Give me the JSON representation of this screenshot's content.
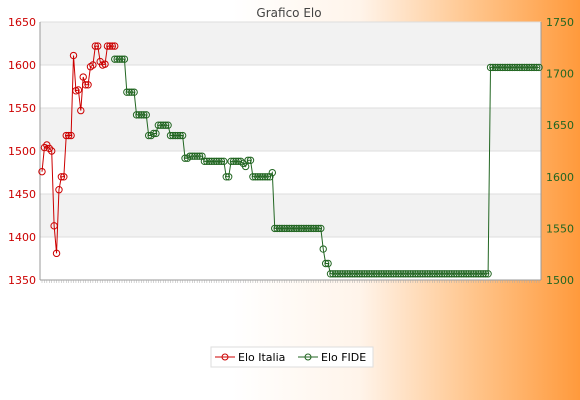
{
  "chart_data": {
    "type": "line",
    "title": "Grafico Elo",
    "xlabel": "",
    "ylabel": "",
    "y_left": {
      "ylim": [
        1350,
        1650
      ],
      "ticks": [
        1350,
        1400,
        1450,
        1500,
        1550,
        1600,
        1650
      ],
      "color": "#cc0000"
    },
    "y_right": {
      "ylim": [
        1500,
        1750
      ],
      "ticks": [
        1500,
        1550,
        1600,
        1650,
        1700,
        1750
      ],
      "color": "#226622"
    },
    "grid": true,
    "legend": {
      "position": "bottom-center"
    },
    "series": [
      {
        "name": "Elo Italia",
        "axis": "left",
        "color": "#cc0000",
        "values": [
          1476,
          1504,
          1507,
          1503,
          1500,
          1413,
          1381,
          1455,
          1470,
          1470,
          1518,
          1518,
          1518,
          1611,
          1570,
          1571,
          1547,
          1586,
          1577,
          1577,
          1598,
          1600,
          1622,
          1622,
          1604,
          1600,
          1601,
          1622,
          1622,
          1622,
          1622
        ]
      },
      {
        "name": "Elo FIDE",
        "axis": "right",
        "color": "#226622",
        "start_index": 30,
        "values": [
          1714,
          1714,
          1714,
          1714,
          1714,
          1682,
          1682,
          1682,
          1682,
          1660,
          1660,
          1660,
          1660,
          1660,
          1640,
          1640,
          1642,
          1642,
          1650,
          1650,
          1650,
          1650,
          1650,
          1640,
          1640,
          1640,
          1640,
          1640,
          1640,
          1618,
          1618,
          1620,
          1620,
          1620,
          1620,
          1620,
          1620,
          1615,
          1615,
          1615,
          1615,
          1615,
          1615,
          1615,
          1615,
          1615,
          1600,
          1600,
          1615,
          1615,
          1615,
          1615,
          1615,
          1613,
          1610,
          1616,
          1616,
          1600,
          1600,
          1600,
          1600,
          1600,
          1600,
          1600,
          1600,
          1604,
          1550,
          1550,
          1550,
          1550,
          1550,
          1550,
          1550,
          1550,
          1550,
          1550,
          1550,
          1550,
          1550,
          1550,
          1550,
          1550,
          1550,
          1550,
          1550,
          1550,
          1530,
          1516,
          1516,
          1506,
          1506,
          1506,
          1506,
          1506,
          1506,
          1506,
          1506,
          1506,
          1506,
          1506,
          1506,
          1506,
          1506,
          1506,
          1506,
          1506,
          1506,
          1506,
          1506,
          1506,
          1506,
          1506,
          1506,
          1506,
          1506,
          1506,
          1506,
          1506,
          1506,
          1506,
          1506,
          1506,
          1506,
          1506,
          1506,
          1506,
          1506,
          1506,
          1506,
          1506,
          1506,
          1506,
          1506,
          1506,
          1506,
          1506,
          1506,
          1506,
          1506,
          1506,
          1506,
          1506,
          1506,
          1506,
          1506,
          1506,
          1506,
          1506,
          1506,
          1506,
          1506,
          1506,
          1506,
          1506,
          1506,
          1706,
          1706,
          1706,
          1706,
          1706,
          1706,
          1706,
          1706,
          1706,
          1706,
          1706,
          1706,
          1706,
          1706,
          1706,
          1706,
          1706,
          1706,
          1706,
          1706,
          1706
        ]
      }
    ]
  }
}
